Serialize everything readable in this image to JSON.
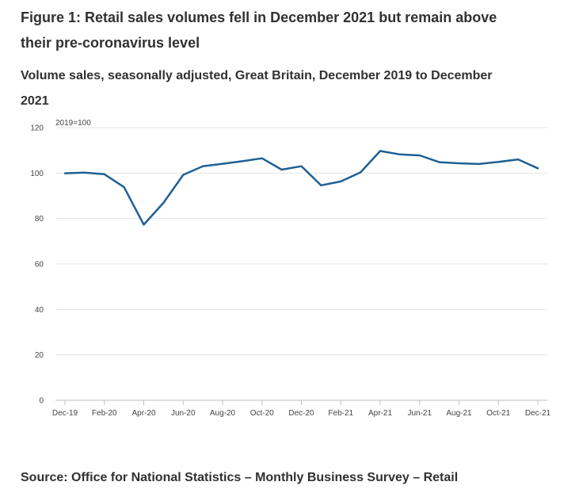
{
  "title": "Figure 1: Retail sales volumes fell in December 2021 but remain above their pre-coronavirus level",
  "subtitle": "Volume sales, seasonally adjusted, Great Britain, December 2019 to December 2021",
  "source": "Source: Office for National Statistics – Monthly Business Survey – Retail",
  "chart_data": {
    "type": "line",
    "ylabel": "2019=100",
    "xlabel": "",
    "ylim": [
      0,
      120
    ],
    "yticks": [
      0,
      20,
      40,
      60,
      80,
      100,
      120
    ],
    "grid": true,
    "x": [
      "Dec-19",
      "Jan-20",
      "Feb-20",
      "Mar-20",
      "Apr-20",
      "May-20",
      "Jun-20",
      "Jul-20",
      "Aug-20",
      "Sep-20",
      "Oct-20",
      "Nov-20",
      "Dec-20",
      "Jan-21",
      "Feb-21",
      "Mar-21",
      "Apr-21",
      "May-21",
      "Jun-21",
      "Jul-21",
      "Aug-21",
      "Sep-21",
      "Oct-21",
      "Nov-21",
      "Dec-21"
    ],
    "xtick_labels": [
      "Dec-19",
      "Feb-20",
      "Apr-20",
      "Jun-20",
      "Aug-20",
      "Oct-20",
      "Dec-20",
      "Feb-21",
      "Apr-21",
      "Jun-21",
      "Aug-21",
      "Oct-21",
      "Dec-21"
    ],
    "series": [
      {
        "name": "Volume sales",
        "color": "#206095",
        "values": [
          99.9,
          100.2,
          99.5,
          93.8,
          77.3,
          86.9,
          99.2,
          103.0,
          104.1,
          105.2,
          106.5,
          101.5,
          103.0,
          94.6,
          96.3,
          100.3,
          109.7,
          108.2,
          107.8,
          104.8,
          104.3,
          104.0,
          104.9,
          106.0,
          102.1
        ]
      }
    ]
  }
}
